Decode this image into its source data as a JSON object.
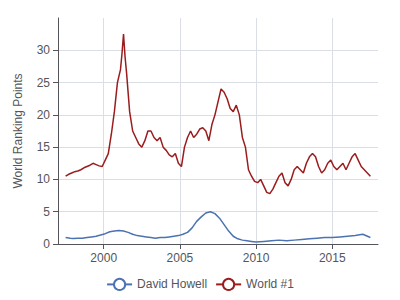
{
  "chart_data": {
    "type": "line",
    "ylabel": "World Ranking Points",
    "xlim": [
      1997.0,
      2018.0
    ],
    "xticks": [
      2000,
      2005,
      2010,
      2015
    ],
    "ylim": [
      0,
      35
    ],
    "yticks": [
      0,
      5,
      10,
      15,
      20,
      25,
      30
    ],
    "grid": true,
    "legend": "bottom",
    "series": [
      {
        "name": "David Howell",
        "color": "#4c72b0",
        "x": [
          1997.5,
          1997.8,
          1998.0,
          1998.3,
          1998.6,
          1998.9,
          1999.2,
          1999.5,
          1999.8,
          2000.1,
          2000.4,
          2000.7,
          2001.0,
          2001.3,
          2001.6,
          2001.9,
          2002.2,
          2002.5,
          2002.8,
          2003.1,
          2003.4,
          2003.7,
          2004.0,
          2004.3,
          2004.6,
          2004.9,
          2005.2,
          2005.5,
          2005.8,
          2006.1,
          2006.4,
          2006.7,
          2007.0,
          2007.3,
          2007.6,
          2007.9,
          2008.2,
          2008.5,
          2008.8,
          2009.1,
          2009.4,
          2009.7,
          2010.0,
          2010.5,
          2011.0,
          2011.5,
          2012.0,
          2012.5,
          2013.0,
          2013.5,
          2014.0,
          2014.5,
          2015.0,
          2015.5,
          2016.0,
          2016.5,
          2017.0,
          2017.5
        ],
        "values": [
          1.0,
          0.9,
          0.85,
          0.9,
          0.9,
          1.0,
          1.1,
          1.2,
          1.4,
          1.6,
          1.9,
          2.0,
          2.1,
          2.0,
          1.8,
          1.5,
          1.3,
          1.2,
          1.1,
          1.0,
          0.9,
          1.0,
          1.0,
          1.1,
          1.2,
          1.3,
          1.5,
          1.8,
          2.5,
          3.5,
          4.2,
          4.8,
          5.0,
          4.7,
          4.0,
          3.0,
          2.0,
          1.2,
          0.8,
          0.6,
          0.5,
          0.4,
          0.3,
          0.4,
          0.5,
          0.6,
          0.5,
          0.6,
          0.7,
          0.8,
          0.9,
          1.0,
          1.0,
          1.1,
          1.2,
          1.3,
          1.5,
          1.0
        ]
      },
      {
        "name": "World #1",
        "color": "#9b1c1c",
        "x": [
          1997.5,
          1997.7,
          1997.9,
          1998.1,
          1998.3,
          1998.5,
          1998.7,
          1998.9,
          1999.1,
          1999.3,
          1999.5,
          1999.7,
          1999.9,
          2000.1,
          2000.3,
          2000.5,
          2000.7,
          2000.9,
          2001.1,
          2001.2,
          2001.3,
          2001.4,
          2001.5,
          2001.7,
          2001.9,
          2002.1,
          2002.3,
          2002.5,
          2002.7,
          2002.9,
          2003.1,
          2003.3,
          2003.5,
          2003.7,
          2003.9,
          2004.1,
          2004.3,
          2004.5,
          2004.7,
          2004.9,
          2005.1,
          2005.3,
          2005.5,
          2005.7,
          2005.9,
          2006.1,
          2006.3,
          2006.5,
          2006.7,
          2006.9,
          2007.1,
          2007.3,
          2007.5,
          2007.7,
          2007.9,
          2008.1,
          2008.3,
          2008.5,
          2008.7,
          2008.9,
          2009.1,
          2009.3,
          2009.5,
          2009.7,
          2009.9,
          2010.1,
          2010.3,
          2010.5,
          2010.7,
          2010.9,
          2011.1,
          2011.3,
          2011.5,
          2011.7,
          2011.9,
          2012.1,
          2012.3,
          2012.5,
          2012.7,
          2012.9,
          2013.1,
          2013.3,
          2013.5,
          2013.7,
          2013.9,
          2014.1,
          2014.3,
          2014.5,
          2014.7,
          2014.9,
          2015.1,
          2015.3,
          2015.5,
          2015.7,
          2015.9,
          2016.1,
          2016.3,
          2016.5,
          2016.7,
          2016.9,
          2017.1,
          2017.3,
          2017.5
        ],
        "values": [
          10.5,
          10.8,
          11.0,
          11.2,
          11.3,
          11.5,
          11.8,
          12.0,
          12.2,
          12.5,
          12.3,
          12.1,
          12.0,
          13.0,
          14.0,
          17.0,
          20.5,
          25.0,
          27.0,
          29.5,
          32.5,
          29.0,
          26.5,
          20.5,
          17.5,
          16.5,
          15.5,
          15.0,
          16.0,
          17.5,
          17.5,
          16.5,
          16.0,
          16.5,
          15.0,
          14.5,
          13.8,
          13.5,
          14.0,
          12.5,
          12.0,
          15.0,
          16.5,
          17.5,
          16.5,
          17.0,
          17.8,
          18.0,
          17.5,
          16.0,
          18.5,
          20.0,
          22.0,
          24.0,
          23.5,
          22.5,
          21.0,
          20.5,
          21.5,
          20.0,
          16.5,
          15.0,
          11.5,
          10.5,
          9.7,
          9.5,
          10.0,
          9.0,
          8.0,
          7.8,
          8.5,
          9.5,
          10.5,
          11.0,
          9.5,
          9.0,
          10.0,
          11.5,
          12.0,
          11.5,
          11.0,
          12.5,
          13.5,
          14.0,
          13.5,
          12.0,
          11.0,
          11.5,
          12.5,
          13.0,
          12.0,
          11.5,
          12.0,
          12.5,
          11.5,
          12.5,
          13.5,
          14.0,
          13.0,
          12.0,
          11.5,
          11.0,
          10.5
        ]
      }
    ]
  }
}
